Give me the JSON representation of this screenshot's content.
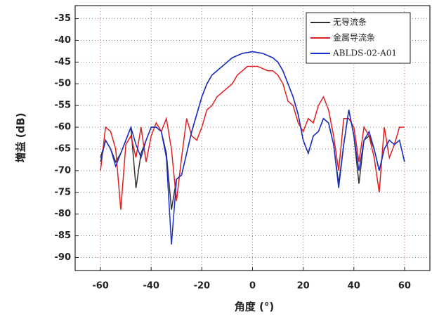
{
  "chart_data": {
    "type": "line",
    "xlabel": "角度 (°)",
    "ylabel": "增益 (dB)",
    "x": [
      -60,
      -58,
      -56,
      -54,
      -52,
      -50,
      -48,
      -46,
      -44,
      -42,
      -40,
      -38,
      -36,
      -34,
      -32,
      -30,
      -28,
      -26,
      -24,
      -22,
      -20,
      -18,
      -16,
      -14,
      -12,
      -10,
      -8,
      -6,
      -4,
      -2,
      0,
      2,
      4,
      6,
      8,
      10,
      12,
      14,
      16,
      18,
      20,
      22,
      24,
      26,
      28,
      30,
      32,
      34,
      36,
      38,
      40,
      42,
      44,
      46,
      48,
      50,
      52,
      54,
      56,
      58,
      60
    ],
    "series": [
      {
        "name": "无导流条",
        "color": "#333333",
        "values": [
          -67,
          -63,
          -65,
          -68,
          -66,
          -63,
          -60,
          -74,
          -66,
          -63,
          -60,
          -60,
          -61,
          -66,
          -79,
          -72,
          -71,
          -66,
          -61,
          -57,
          -53,
          -50,
          -48,
          -47,
          -46,
          -45,
          -44,
          -43.5,
          -43,
          -42.8,
          -42.6,
          -42.8,
          -43,
          -43.5,
          -44,
          -45,
          -47,
          -50,
          -53,
          -57,
          -63,
          -66,
          -62,
          -61,
          -58,
          -59,
          -64,
          -73,
          -64,
          -56,
          -62,
          -73,
          -63,
          -62,
          -65,
          -70,
          -65,
          -63,
          -64,
          -63,
          -68
        ]
      },
      {
        "name": "金属导流条",
        "color": "#e02020",
        "values": [
          -70,
          -60,
          -61,
          -65,
          -79,
          -64,
          -62,
          -67,
          -60,
          -68,
          -62,
          -59,
          -61,
          -58,
          -65,
          -77,
          -67,
          -58,
          -62,
          -63,
          -60,
          -56,
          -55,
          -53,
          -52,
          -51,
          -50,
          -48,
          -47,
          -46,
          -46,
          -46,
          -46.5,
          -47,
          -47,
          -48,
          -50,
          -54,
          -55,
          -59,
          -61,
          -58,
          -59,
          -55,
          -53,
          -56,
          -62,
          -70,
          -58,
          -58,
          -60,
          -68,
          -60,
          -62,
          -67,
          -75,
          -60,
          -67,
          -64,
          -60,
          -60
        ]
      },
      {
        "name": "ABLDS-02-A01",
        "color": "#1a2fc8",
        "values": [
          -68,
          -63,
          -65,
          -69,
          -66,
          -63,
          -60,
          -64,
          -67,
          -63,
          -60,
          -60,
          -61,
          -67,
          -87,
          -72,
          -71,
          -66,
          -61,
          -57,
          -53,
          -50,
          -48,
          -47,
          -46,
          -45,
          -44,
          -43.5,
          -43,
          -42.8,
          -42.6,
          -42.8,
          -43,
          -43.5,
          -44,
          -45,
          -47,
          -50,
          -53,
          -57,
          -63,
          -66,
          -62,
          -61,
          -58,
          -59,
          -64,
          -74,
          -64,
          -56,
          -62,
          -70,
          -63,
          -61,
          -65,
          -70,
          -65,
          -63,
          -64,
          -63,
          -68
        ]
      }
    ],
    "xlim": [
      -70,
      70
    ],
    "xticks": [
      -60,
      -40,
      -20,
      0,
      20,
      40,
      60
    ],
    "ylim": [
      -93,
      -32
    ],
    "yticks": [
      -35,
      -40,
      -45,
      -50,
      -55,
      -60,
      -65,
      -70,
      -75,
      -80,
      -85,
      -90
    ],
    "grid": true,
    "legend": "top-right"
  }
}
